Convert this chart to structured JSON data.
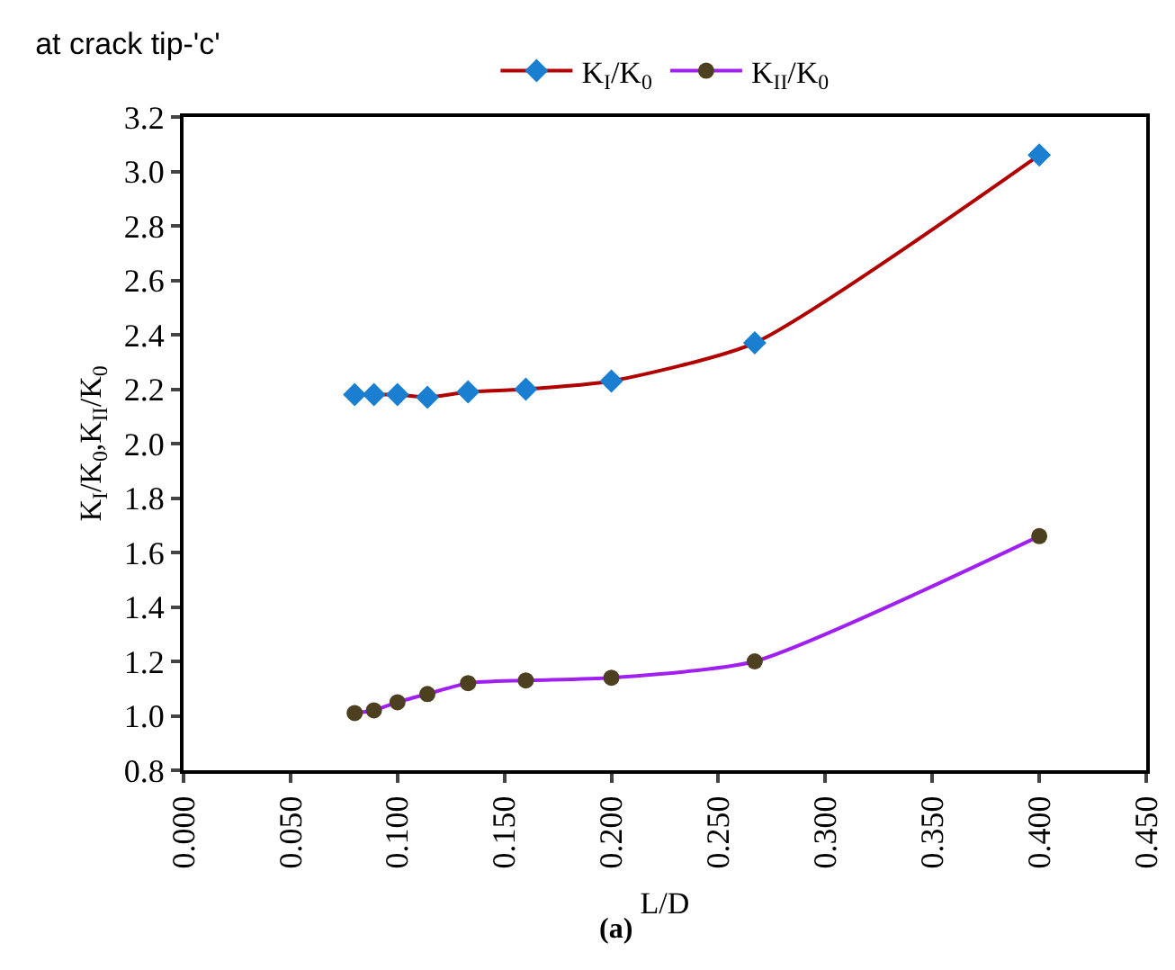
{
  "chart_data": {
    "type": "line",
    "title": "at crack tip-'c'",
    "xlabel": "L/D",
    "ylabel": "K$_{I}$/K$_{0}$,K$_{II}$/K$_{0}$",
    "annotations": [
      "(a)"
    ],
    "x": [
      0.08,
      0.089,
      0.1,
      0.114,
      0.133,
      0.16,
      0.2,
      0.267,
      0.4
    ],
    "series": [
      {
        "name": "K$_{I}$/K$_{0}$",
        "color": "#b00000",
        "marker": "diamond",
        "colors": [
          "#1a7fd0",
          "#1a7fd0",
          "#1a7fd0",
          "#1a7fd0",
          "#1a7fd0",
          "#1a7fd0",
          "#1a7fd0",
          "#1a7fd0",
          "#1a7fd0"
        ],
        "values": [
          2.18,
          2.18,
          2.18,
          2.17,
          2.19,
          2.2,
          2.23,
          2.37,
          3.06
        ]
      },
      {
        "name": "K$_{II}$/K$_{0}$",
        "color": "#a020f0",
        "marker": "circle",
        "colors": [
          "#4d4020",
          "#4d4020",
          "#4d4020",
          "#4d4020",
          "#4d4020",
          "#4d4020",
          "#4d4020",
          "#4d4020",
          "#4d4020"
        ],
        "values": [
          1.01,
          1.02,
          1.05,
          1.08,
          1.12,
          1.13,
          1.14,
          1.2,
          1.66
        ]
      }
    ],
    "xlim": [
      0,
      0.45
    ],
    "xticks": [
      {
        "value": 0,
        "label": "0.000"
      },
      {
        "value": 0.05,
        "label": "0.050"
      },
      {
        "value": 0.1,
        "label": "0.100"
      },
      {
        "value": 0.15,
        "label": "0.150"
      },
      {
        "value": 0.2,
        "label": "0.200"
      },
      {
        "value": 0.25,
        "label": "0.250"
      },
      {
        "value": 0.3,
        "label": "0.300"
      },
      {
        "value": 0.35,
        "label": "0.350"
      },
      {
        "value": 0.4,
        "label": "0.400"
      },
      {
        "value": 0.45,
        "label": "0.450"
      }
    ],
    "ylim": [
      0.8,
      3.2
    ],
    "yticks": [
      {
        "value": 0.8,
        "label": "0.8"
      },
      {
        "value": 1,
        "label": "1.0"
      },
      {
        "value": 1.2,
        "label": "1.2"
      },
      {
        "value": 1.4,
        "label": "1.4"
      },
      {
        "value": 1.6,
        "label": "1.6"
      },
      {
        "value": 1.8,
        "label": "1.8"
      },
      {
        "value": 2,
        "label": "2.0"
      },
      {
        "value": 2.2,
        "label": "2.2"
      },
      {
        "value": 2.4,
        "label": "2.4"
      },
      {
        "value": 2.6,
        "label": "2.6"
      },
      {
        "value": 2.8,
        "label": "2.8"
      },
      {
        "value": 3,
        "label": "3.0"
      },
      {
        "value": 3.2,
        "label": "3.2"
      }
    ],
    "grid": false,
    "legend": "top"
  }
}
